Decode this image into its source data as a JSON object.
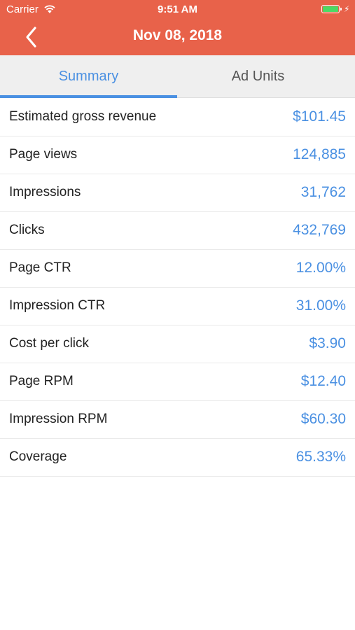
{
  "status_bar": {
    "carrier": "Carrier",
    "time": "9:51 AM",
    "battery_level": 1.0,
    "battery_color": "#4cd964"
  },
  "nav": {
    "back_icon": "chevron-left-icon",
    "title": "Nov 08, 2018",
    "background": "#e8624a"
  },
  "tabs": [
    {
      "label": "Summary",
      "active": true
    },
    {
      "label": "Ad Units",
      "active": false
    }
  ],
  "accent": "#4a90e2",
  "metrics": [
    {
      "label": "Estimated gross revenue",
      "value": "$101.45"
    },
    {
      "label": "Page views",
      "value": "124,885"
    },
    {
      "label": "Impressions",
      "value": "31,762"
    },
    {
      "label": "Clicks",
      "value": "432,769"
    },
    {
      "label": "Page CTR",
      "value": "12.00%"
    },
    {
      "label": "Impression CTR",
      "value": "31.00%"
    },
    {
      "label": "Cost per click",
      "value": "$3.90"
    },
    {
      "label": "Page RPM",
      "value": "$12.40"
    },
    {
      "label": "Impression RPM",
      "value": "$60.30"
    },
    {
      "label": "Coverage",
      "value": "65.33%"
    }
  ]
}
